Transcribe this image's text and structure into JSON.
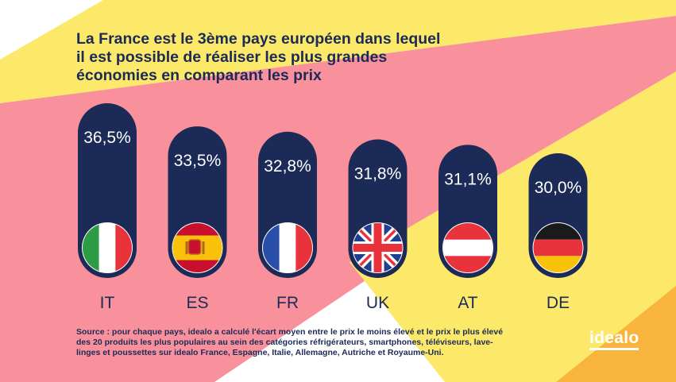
{
  "title": "La France est le 3ème pays européen dans lequel il est possible de réaliser les plus grandes économies en comparant les prix",
  "source": "Source :  pour chaque pays, idealo a calculé l'écart moyen entre le prix le moins élevé et le prix le plus élevé des 20 produits les plus populaires au sein des catégories réfrigérateurs, smartphones, téléviseurs, lave-linges et poussettes sur idealo France, Espagne, Italie, Allemagne, Autriche et Royaume-Uni.",
  "logo": "idealo",
  "colors": {
    "navy": "#1b2a56",
    "pink": "#f9919c",
    "yellow": "#fce96a",
    "orange": "#f8b43c"
  },
  "chart_data": {
    "type": "bar",
    "categories": [
      "IT",
      "ES",
      "FR",
      "UK",
      "AT",
      "DE"
    ],
    "values": [
      36.5,
      33.5,
      32.8,
      31.8,
      31.1,
      30.0
    ],
    "value_labels": [
      "36,5%",
      "33,5%",
      "32,8%",
      "31,8%",
      "31,1%",
      "30,0%"
    ],
    "flags": [
      "italy-flag",
      "spain-flag",
      "france-flag",
      "uk-flag",
      "austria-flag",
      "germany-flag"
    ]
  }
}
